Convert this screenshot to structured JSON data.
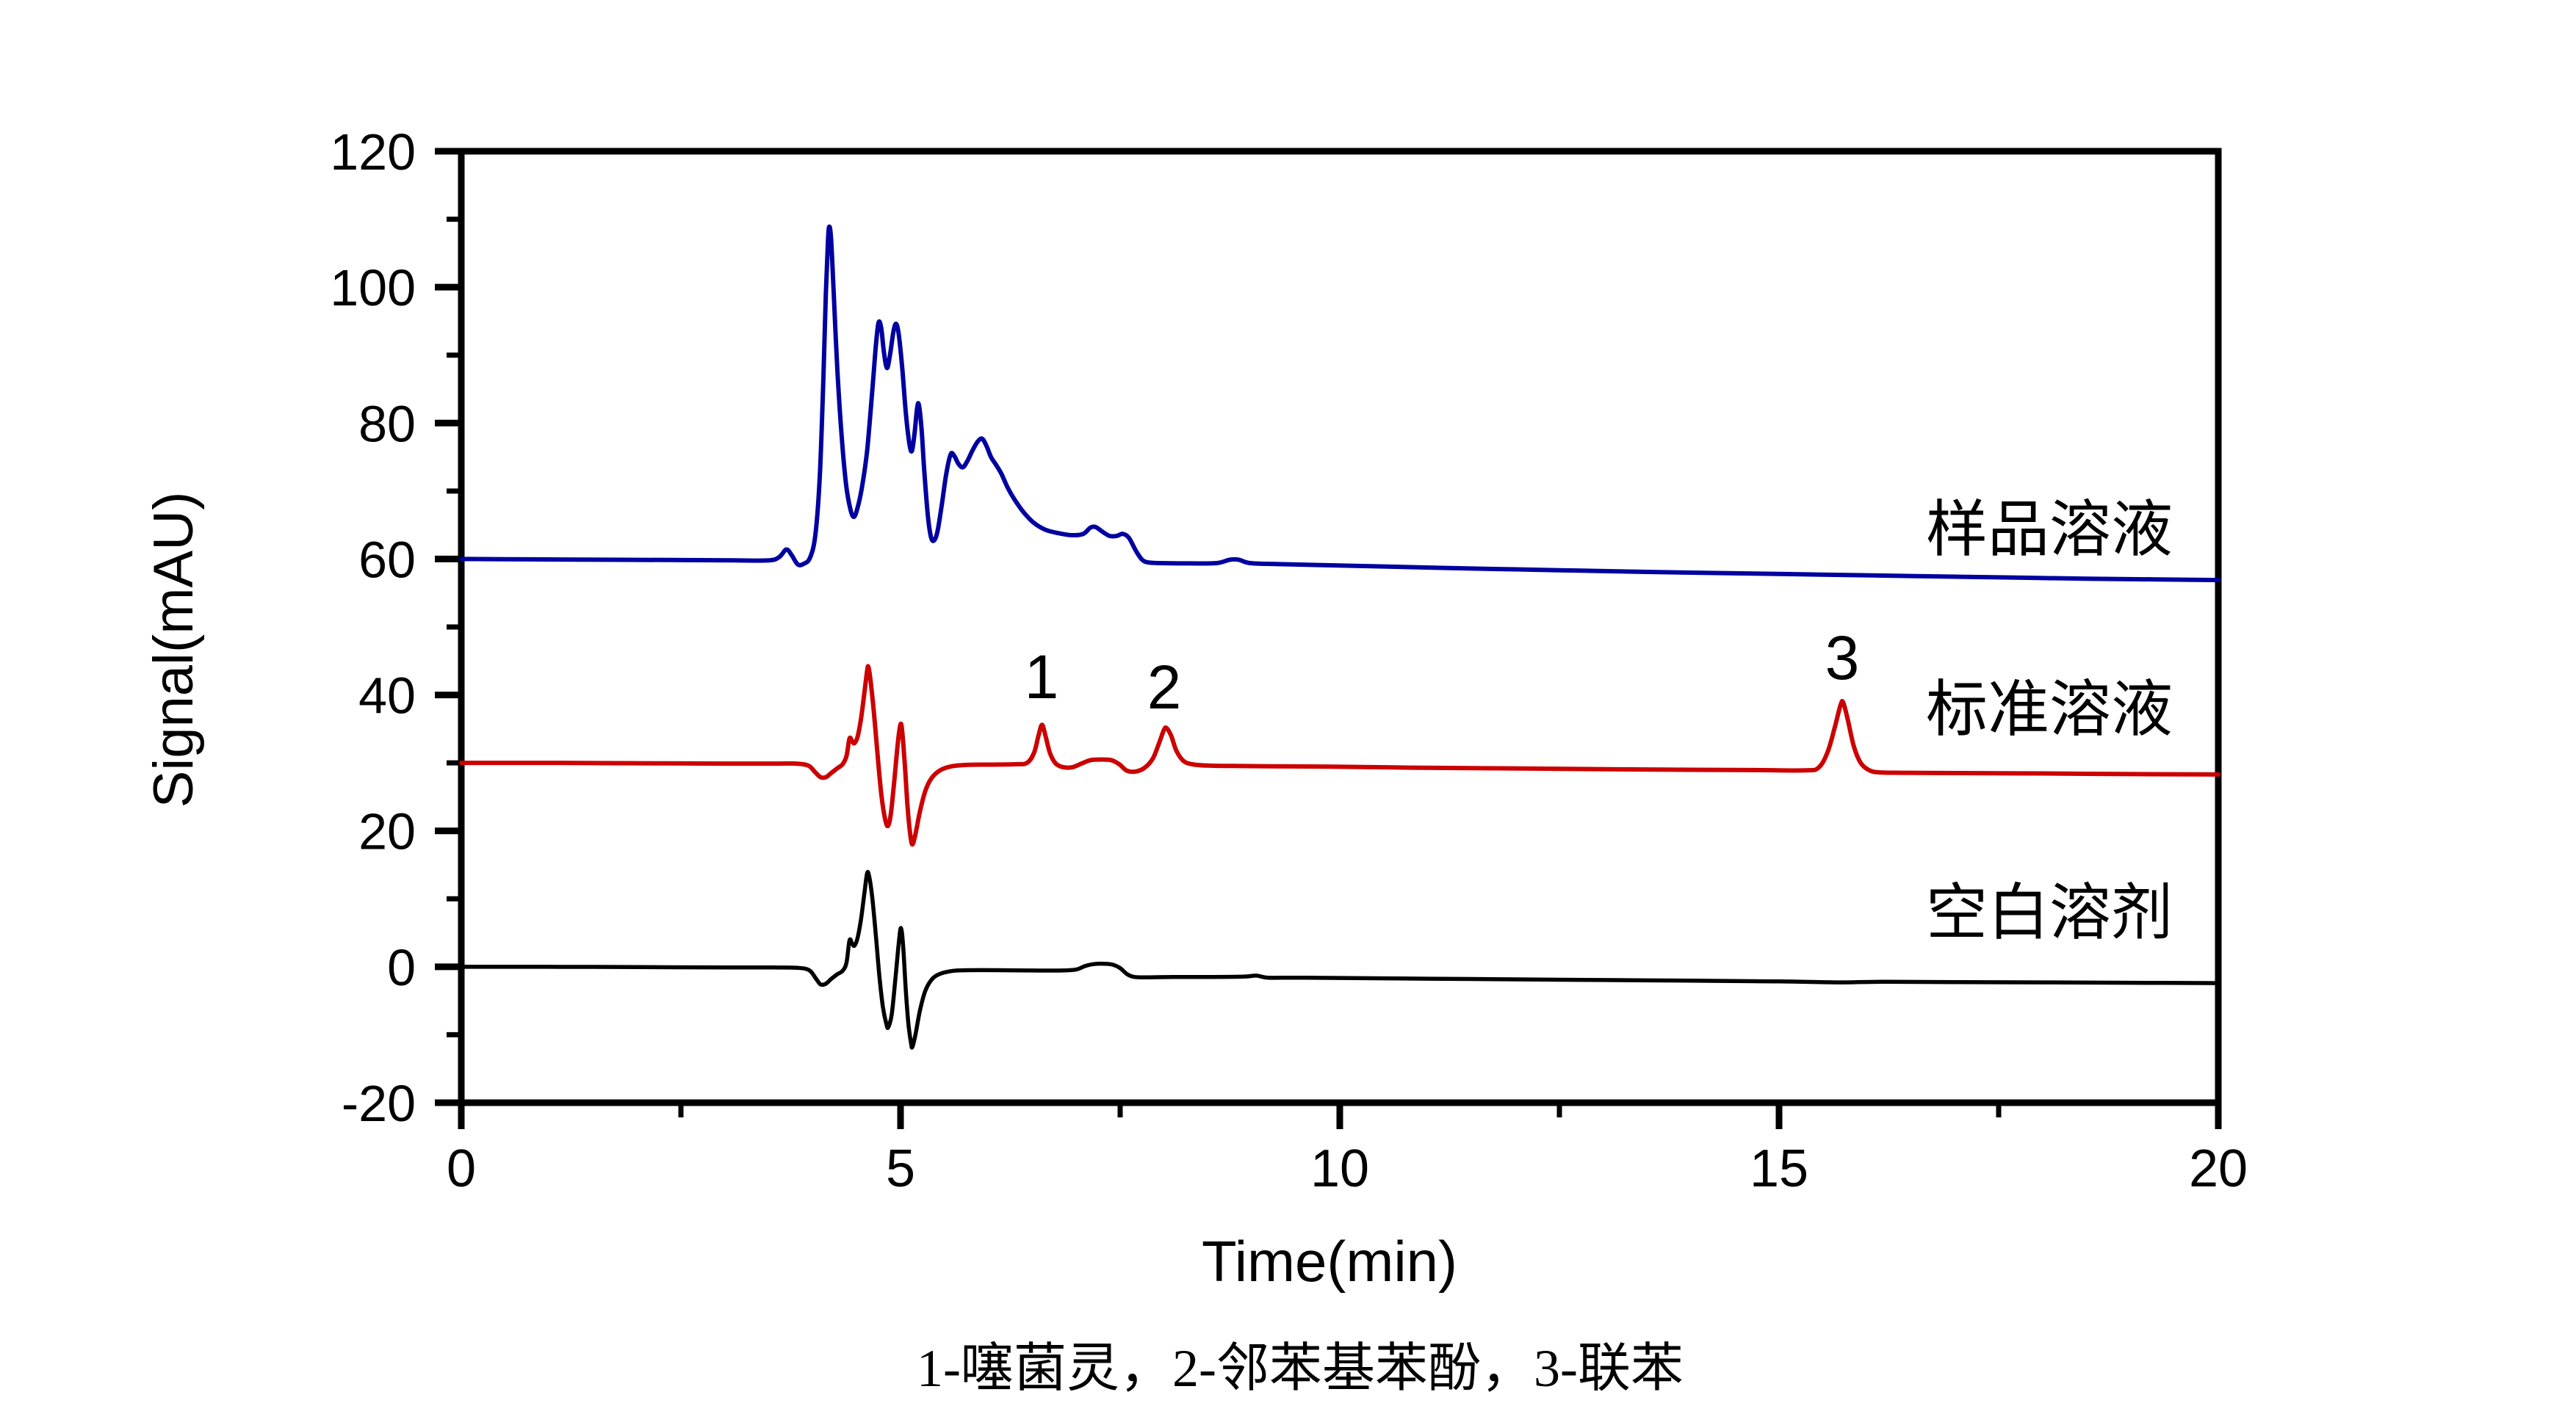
{
  "caption": {
    "text": "1-噻菌灵，2-邻苯基苯酚，3-联苯"
  },
  "chart_data": {
    "type": "line",
    "title": "",
    "xlabel": "Time(min)",
    "ylabel": "Signal(mAU)",
    "x_range": [
      0,
      20
    ],
    "y_range": [
      -20,
      120
    ],
    "grid": false,
    "x_axis": {
      "major_ticks": [
        0,
        5,
        10,
        15,
        20
      ],
      "minor_ticks": [
        2.5,
        7.5,
        12.5,
        17.5
      ]
    },
    "y_axis": {
      "major_ticks": [
        120,
        100,
        80,
        60,
        40,
        20,
        0,
        -20
      ],
      "minor_ticks": [
        110,
        90,
        70,
        50,
        30,
        10,
        -10
      ]
    },
    "peaks": [
      {
        "label": "1",
        "compound": "噻菌灵",
        "time_min": 6.6,
        "height_mau": 35.6
      },
      {
        "label": "2",
        "compound": "邻苯基苯酚",
        "time_min": 8.0,
        "height_mau": 35.1
      },
      {
        "label": "3",
        "compound": "联苯",
        "time_min": 15.7,
        "height_mau": 38.9
      }
    ],
    "series": [
      {
        "name": "sample-solution",
        "label": "样品溶液",
        "color": "#0000A0",
        "baseline_mau": 60,
        "points": [
          [
            0,
            60
          ],
          [
            0.8,
            59.95
          ],
          [
            1.6,
            59.9
          ],
          [
            2.4,
            59.85
          ],
          [
            3.1,
            59.8
          ],
          [
            3.5,
            59.8
          ],
          [
            3.62,
            60.3
          ],
          [
            3.7,
            61.4
          ],
          [
            3.76,
            60.6
          ],
          [
            3.83,
            59.2
          ],
          [
            3.9,
            59.3
          ],
          [
            3.97,
            60.2
          ],
          [
            4.03,
            63.5
          ],
          [
            4.08,
            72
          ],
          [
            4.12,
            86
          ],
          [
            4.15,
            99
          ],
          [
            4.175,
            107
          ],
          [
            4.19,
            108.9
          ],
          [
            4.21,
            107
          ],
          [
            4.24,
            99
          ],
          [
            4.28,
            88
          ],
          [
            4.33,
            78
          ],
          [
            4.38,
            71
          ],
          [
            4.43,
            67.3
          ],
          [
            4.47,
            66.2
          ],
          [
            4.51,
            67.5
          ],
          [
            4.56,
            70.5
          ],
          [
            4.62,
            76
          ],
          [
            4.68,
            85
          ],
          [
            4.72,
            91.5
          ],
          [
            4.75,
            94.8
          ],
          [
            4.78,
            94
          ],
          [
            4.81,
            90.5
          ],
          [
            4.845,
            88.1
          ],
          [
            4.88,
            90
          ],
          [
            4.92,
            93.5
          ],
          [
            4.95,
            94.6
          ],
          [
            4.98,
            93
          ],
          [
            5.02,
            88
          ],
          [
            5.06,
            81.5
          ],
          [
            5.1,
            77
          ],
          [
            5.13,
            75.9
          ],
          [
            5.16,
            78.5
          ],
          [
            5.19,
            82.3
          ],
          [
            5.21,
            82.6
          ],
          [
            5.24,
            79
          ],
          [
            5.27,
            73
          ],
          [
            5.31,
            66.5
          ],
          [
            5.345,
            63.3
          ],
          [
            5.38,
            62.7
          ],
          [
            5.42,
            64
          ],
          [
            5.47,
            68
          ],
          [
            5.52,
            72.5
          ],
          [
            5.57,
            75.4
          ],
          [
            5.61,
            75.2
          ],
          [
            5.66,
            74
          ],
          [
            5.71,
            73.5
          ],
          [
            5.76,
            74.4
          ],
          [
            5.82,
            76
          ],
          [
            5.88,
            77.3
          ],
          [
            5.93,
            77.7
          ],
          [
            5.98,
            76.6
          ],
          [
            6.03,
            75
          ],
          [
            6.09,
            73.8
          ],
          [
            6.15,
            72.5
          ],
          [
            6.22,
            70.5
          ],
          [
            6.3,
            68.7
          ],
          [
            6.4,
            66.9
          ],
          [
            6.52,
            65.3
          ],
          [
            6.65,
            64.3
          ],
          [
            6.8,
            63.8
          ],
          [
            6.95,
            63.5
          ],
          [
            7.08,
            63.7
          ],
          [
            7.16,
            64.6
          ],
          [
            7.22,
            64.7
          ],
          [
            7.3,
            64
          ],
          [
            7.38,
            63.4
          ],
          [
            7.46,
            63.4
          ],
          [
            7.53,
            63.7
          ],
          [
            7.6,
            63.1
          ],
          [
            7.68,
            61.2
          ],
          [
            7.75,
            59.9
          ],
          [
            7.82,
            59.5
          ],
          [
            7.95,
            59.4
          ],
          [
            8.3,
            59.35
          ],
          [
            8.6,
            59.4
          ],
          [
            8.75,
            59.9
          ],
          [
            8.85,
            59.9
          ],
          [
            8.98,
            59.4
          ],
          [
            9.3,
            59.25
          ],
          [
            9.8,
            59.1
          ],
          [
            10.5,
            58.9
          ],
          [
            11.5,
            58.6
          ],
          [
            12.5,
            58.35
          ],
          [
            13.5,
            58.1
          ],
          [
            14.5,
            57.9
          ],
          [
            15.5,
            57.7
          ],
          [
            16.5,
            57.5
          ],
          [
            17.5,
            57.3
          ],
          [
            18.5,
            57.1
          ],
          [
            19.3,
            57.0
          ],
          [
            20,
            56.9
          ]
        ]
      },
      {
        "name": "standard-solution",
        "label": "标准溶液",
        "color": "#CC0000",
        "baseline_mau": 30,
        "points": [
          [
            0,
            30
          ],
          [
            1,
            30
          ],
          [
            2,
            29.95
          ],
          [
            3,
            29.9
          ],
          [
            3.55,
            29.9
          ],
          [
            3.8,
            29.9
          ],
          [
            3.95,
            29.6
          ],
          [
            4.03,
            28.6
          ],
          [
            4.09,
            27.9
          ],
          [
            4.15,
            27.9
          ],
          [
            4.21,
            28.5
          ],
          [
            4.28,
            29.2
          ],
          [
            4.34,
            29.8
          ],
          [
            4.385,
            31
          ],
          [
            4.42,
            33.6
          ],
          [
            4.45,
            33.2
          ],
          [
            4.475,
            32.9
          ],
          [
            4.51,
            33.8
          ],
          [
            4.55,
            36.5
          ],
          [
            4.59,
            40.5
          ],
          [
            4.62,
            43.6
          ],
          [
            4.635,
            44.1
          ],
          [
            4.66,
            42
          ],
          [
            4.7,
            37
          ],
          [
            4.74,
            31
          ],
          [
            4.78,
            25.5
          ],
          [
            4.82,
            22
          ],
          [
            4.855,
            20.7
          ],
          [
            4.89,
            22.5
          ],
          [
            4.93,
            27.5
          ],
          [
            4.97,
            33
          ],
          [
            5.0,
            35.7
          ],
          [
            5.02,
            34.5
          ],
          [
            5.05,
            29.5
          ],
          [
            5.08,
            23.5
          ],
          [
            5.11,
            19.5
          ],
          [
            5.135,
            18.0
          ],
          [
            5.17,
            19.5
          ],
          [
            5.22,
            22.8
          ],
          [
            5.28,
            25.8
          ],
          [
            5.35,
            27.7
          ],
          [
            5.45,
            28.9
          ],
          [
            5.58,
            29.5
          ],
          [
            5.75,
            29.7
          ],
          [
            6.0,
            29.75
          ],
          [
            6.3,
            29.8
          ],
          [
            6.44,
            30.0
          ],
          [
            6.52,
            31.5
          ],
          [
            6.57,
            34
          ],
          [
            6.61,
            35.6
          ],
          [
            6.65,
            34
          ],
          [
            6.7,
            31.5
          ],
          [
            6.76,
            30
          ],
          [
            6.84,
            29.4
          ],
          [
            6.95,
            29.35
          ],
          [
            7.06,
            29.9
          ],
          [
            7.16,
            30.4
          ],
          [
            7.28,
            30.5
          ],
          [
            7.4,
            30.4
          ],
          [
            7.49,
            29.8
          ],
          [
            7.57,
            28.9
          ],
          [
            7.66,
            28.7
          ],
          [
            7.77,
            29.2
          ],
          [
            7.87,
            30.6
          ],
          [
            7.94,
            32.8
          ],
          [
            8.0,
            34.9
          ],
          [
            8.03,
            35.1
          ],
          [
            8.08,
            34
          ],
          [
            8.14,
            31.8
          ],
          [
            8.22,
            30.3
          ],
          [
            8.32,
            29.8
          ],
          [
            8.5,
            29.6
          ],
          [
            8.8,
            29.55
          ],
          [
            9.2,
            29.5
          ],
          [
            9.9,
            29.45
          ],
          [
            10.8,
            29.3
          ],
          [
            11.8,
            29.2
          ],
          [
            12.8,
            29.1
          ],
          [
            13.8,
            29.0
          ],
          [
            14.7,
            28.95
          ],
          [
            15.3,
            28.9
          ],
          [
            15.45,
            29.3
          ],
          [
            15.55,
            31.5
          ],
          [
            15.63,
            35
          ],
          [
            15.7,
            38.5
          ],
          [
            15.73,
            38.9
          ],
          [
            15.78,
            36.5
          ],
          [
            15.85,
            32.5
          ],
          [
            15.93,
            30
          ],
          [
            16.03,
            28.9
          ],
          [
            16.15,
            28.6
          ],
          [
            16.4,
            28.55
          ],
          [
            17,
            28.5
          ],
          [
            18,
            28.45
          ],
          [
            19,
            28.35
          ],
          [
            20,
            28.3
          ]
        ]
      },
      {
        "name": "blank-solvent",
        "label": "空白溶剂",
        "color": "#000000",
        "baseline_mau": 0,
        "points": [
          [
            0,
            0
          ],
          [
            1,
            0
          ],
          [
            2,
            -0.05
          ],
          [
            3,
            -0.1
          ],
          [
            3.55,
            -0.1
          ],
          [
            3.82,
            -0.15
          ],
          [
            3.96,
            -0.5
          ],
          [
            4.04,
            -1.8
          ],
          [
            4.09,
            -2.6
          ],
          [
            4.15,
            -2.5
          ],
          [
            4.21,
            -1.8
          ],
          [
            4.28,
            -1.1
          ],
          [
            4.34,
            -0.6
          ],
          [
            4.385,
            0.6
          ],
          [
            4.42,
            3.9
          ],
          [
            4.45,
            3.4
          ],
          [
            4.475,
            3.1
          ],
          [
            4.51,
            4.2
          ],
          [
            4.55,
            7
          ],
          [
            4.59,
            11
          ],
          [
            4.62,
            13.8
          ],
          [
            4.645,
            13.2
          ],
          [
            4.68,
            10
          ],
          [
            4.72,
            4.5
          ],
          [
            4.76,
            -1.5
          ],
          [
            4.8,
            -6
          ],
          [
            4.84,
            -8.5
          ],
          [
            4.86,
            -8.9
          ],
          [
            4.9,
            -7
          ],
          [
            4.94,
            -2
          ],
          [
            4.98,
            3.5
          ],
          [
            5.005,
            5.7
          ],
          [
            5.03,
            3
          ],
          [
            5.06,
            -3.5
          ],
          [
            5.09,
            -8.5
          ],
          [
            5.12,
            -11.3
          ],
          [
            5.135,
            -11.8
          ],
          [
            5.17,
            -10
          ],
          [
            5.22,
            -6.5
          ],
          [
            5.28,
            -3.6
          ],
          [
            5.36,
            -1.8
          ],
          [
            5.46,
            -1.0
          ],
          [
            5.6,
            -0.6
          ],
          [
            5.8,
            -0.5
          ],
          [
            6.1,
            -0.5
          ],
          [
            6.5,
            -0.55
          ],
          [
            6.85,
            -0.55
          ],
          [
            7.0,
            -0.4
          ],
          [
            7.1,
            0.1
          ],
          [
            7.2,
            0.4
          ],
          [
            7.32,
            0.45
          ],
          [
            7.42,
            0.3
          ],
          [
            7.5,
            -0.2
          ],
          [
            7.58,
            -1.1
          ],
          [
            7.66,
            -1.5
          ],
          [
            7.8,
            -1.55
          ],
          [
            8.1,
            -1.5
          ],
          [
            8.5,
            -1.5
          ],
          [
            8.9,
            -1.45
          ],
          [
            9.05,
            -1.3
          ],
          [
            9.18,
            -1.6
          ],
          [
            9.5,
            -1.6
          ],
          [
            10,
            -1.65
          ],
          [
            11,
            -1.75
          ],
          [
            12,
            -1.85
          ],
          [
            13,
            -1.95
          ],
          [
            14,
            -2.05
          ],
          [
            15,
            -2.15
          ],
          [
            15.7,
            -2.3
          ],
          [
            16.2,
            -2.2
          ],
          [
            17,
            -2.25
          ],
          [
            18,
            -2.3
          ],
          [
            19,
            -2.35
          ],
          [
            20,
            -2.4
          ]
        ]
      }
    ]
  }
}
